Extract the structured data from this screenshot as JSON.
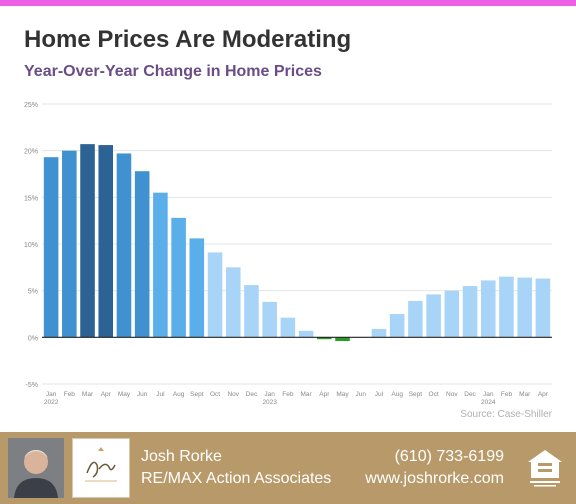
{
  "header": {
    "title": "Home Prices Are Moderating",
    "subtitle": "Year-Over-Year Change in Home Prices"
  },
  "colors": {
    "accent_bar": "#ee5fe8",
    "title": "#333333",
    "subtitle": "#6a4d87",
    "bar_peak": "#2c6394",
    "bar_mid": "#3f92cf",
    "bar_high": "#5aaee9",
    "bar_low": "#a8d5f7",
    "bar_negative": "#2a9a2a",
    "footer_bg": "#b89a6a"
  },
  "chart_data": {
    "type": "bar",
    "title": "Home Prices Are Moderating",
    "subtitle": "Year-Over-Year Change in Home Prices",
    "xlabel": "",
    "ylabel": "",
    "categories": [
      "Jan",
      "Feb",
      "Mar",
      "Apr",
      "May",
      "Jun",
      "Jul",
      "Aug",
      "Sept",
      "Oct",
      "Nov",
      "Dec",
      "Jan",
      "Feb",
      "Mar",
      "Apr",
      "May",
      "Jun",
      "Jul",
      "Aug",
      "Sept",
      "Oct",
      "Nov",
      "Dec",
      "Jan",
      "Feb",
      "Mar",
      "Apr"
    ],
    "year_labels": [
      {
        "index": 0,
        "label": "2022"
      },
      {
        "index": 12,
        "label": "2023"
      },
      {
        "index": 24,
        "label": "2024"
      }
    ],
    "values": [
      19.3,
      20.0,
      20.7,
      20.6,
      19.7,
      17.8,
      15.5,
      12.8,
      10.6,
      9.1,
      7.5,
      5.6,
      3.8,
      2.1,
      0.7,
      -0.2,
      -0.4,
      0.0,
      0.9,
      2.5,
      3.9,
      4.6,
      5.0,
      5.5,
      6.1,
      6.5,
      6.4,
      6.3
    ],
    "y_ticks": [
      -5,
      0,
      5,
      10,
      15,
      20,
      25
    ],
    "ylim": [
      -5,
      25
    ],
    "grid": true,
    "legend": "none",
    "source": "Source: Case-Shiller"
  },
  "footer": {
    "agent_name": "Josh Rorke",
    "agency": "RE/MAX Action Associates",
    "phone": "(610) 733-6199",
    "website": "www.joshrorke.com"
  }
}
